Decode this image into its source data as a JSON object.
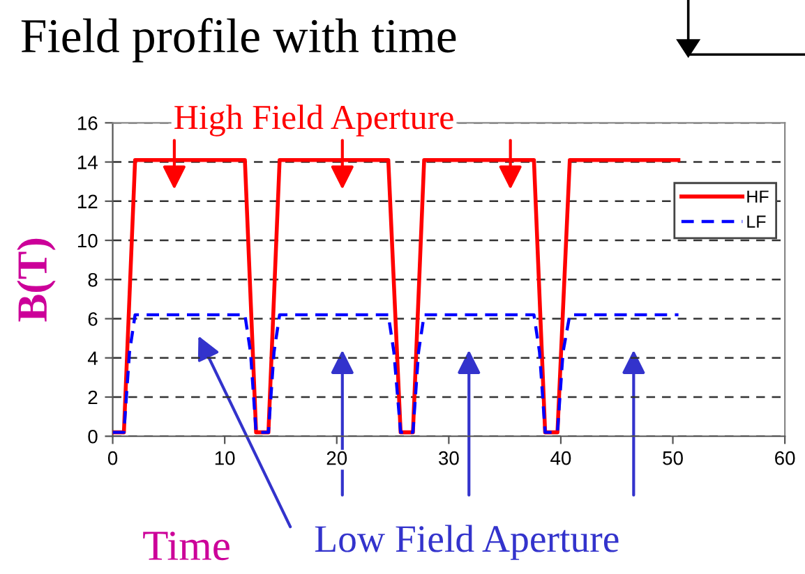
{
  "chart_data": {
    "type": "line",
    "title": "Field profile with time",
    "xlabel": "Time",
    "ylabel": "B(T)",
    "annotations": [
      "High Field Aperture",
      "Low Field Aperture"
    ],
    "series": [
      {
        "name": "HF",
        "color": "#ff0000",
        "line_style": "solid",
        "x": [
          0,
          1,
          2,
          11.8,
          12.8,
          13.9,
          14.9,
          24.6,
          25.7,
          26.8,
          27.8,
          37.6,
          38.6,
          39.7,
          40.8,
          50.5
        ],
        "values": [
          0.2,
          0.2,
          14.1,
          14.1,
          0.2,
          0.2,
          14.1,
          14.1,
          0.2,
          0.2,
          14.1,
          14.1,
          0.2,
          0.2,
          14.1,
          14.1
        ]
      },
      {
        "name": "LF",
        "color": "#0000ff",
        "line_style": "dashed",
        "x": [
          0,
          1,
          1.5,
          2,
          11.8,
          12.3,
          12.8,
          13.9,
          14.4,
          14.9,
          24.6,
          25.1,
          25.7,
          26.8,
          27.3,
          27.8,
          37.6,
          38.1,
          38.6,
          39.7,
          40.2,
          40.8,
          50.5
        ],
        "values": [
          0.2,
          0.2,
          4.3,
          6.2,
          6.2,
          4.3,
          0.2,
          0.2,
          4.3,
          6.2,
          6.2,
          4.3,
          0.2,
          0.2,
          4.3,
          6.2,
          6.2,
          4.3,
          0.2,
          0.2,
          4.3,
          6.2,
          6.2
        ]
      }
    ],
    "xlim": [
      0,
      60
    ],
    "xticks": [
      0,
      10,
      20,
      30,
      40,
      50,
      60
    ],
    "ylim": [
      0,
      16
    ],
    "yticks": [
      0,
      2,
      4,
      6,
      8,
      10,
      12,
      14,
      16
    ],
    "grid": "y",
    "legend": "right",
    "marker": "none"
  }
}
